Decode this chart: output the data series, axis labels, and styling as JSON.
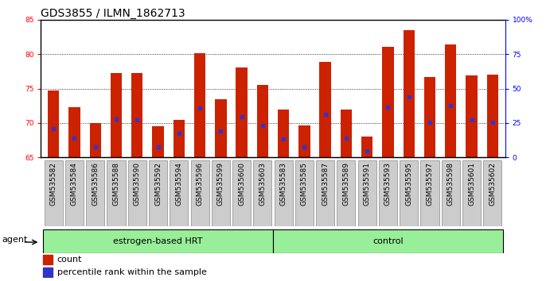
{
  "title": "GDS3855 / ILMN_1862713",
  "samples": [
    "GSM535582",
    "GSM535584",
    "GSM535586",
    "GSM535588",
    "GSM535590",
    "GSM535592",
    "GSM535594",
    "GSM535596",
    "GSM535599",
    "GSM535600",
    "GSM535603",
    "GSM535583",
    "GSM535585",
    "GSM535587",
    "GSM535589",
    "GSM535591",
    "GSM535593",
    "GSM535595",
    "GSM535597",
    "GSM535598",
    "GSM535601",
    "GSM535602"
  ],
  "bar_tops": [
    74.7,
    72.3,
    70.0,
    77.3,
    77.2,
    69.5,
    70.4,
    80.1,
    73.5,
    78.0,
    75.5,
    72.0,
    69.6,
    78.9,
    72.0,
    68.0,
    81.0,
    83.5,
    76.7,
    81.4,
    76.9,
    77.0
  ],
  "blue_positions": [
    69.2,
    67.8,
    66.5,
    70.6,
    70.5,
    66.5,
    68.5,
    72.2,
    68.8,
    70.9,
    69.6,
    67.7,
    66.5,
    71.2,
    67.8,
    66.0,
    72.3,
    73.8,
    70.1,
    72.5,
    70.5,
    70.1
  ],
  "ymin": 65,
  "ymax": 85,
  "yticks_left": [
    65,
    70,
    75,
    80,
    85
  ],
  "right_yticklabels": [
    "0",
    "25",
    "50",
    "75",
    "100%"
  ],
  "bar_color": "#cc2200",
  "blue_color": "#3333cc",
  "group1_label": "estrogen-based HRT",
  "group2_label": "control",
  "group1_count": 11,
  "group2_count": 11,
  "group_bg_color": "#99ee99",
  "agent_label": "agent",
  "legend_count": "count",
  "legend_percentile": "percentile rank within the sample",
  "title_fontsize": 10,
  "tick_fontsize": 6.5,
  "label_fontsize": 8,
  "bar_width": 0.55,
  "baseline": 65,
  "xtick_bg": "#cccccc",
  "spine_color": "#000000"
}
